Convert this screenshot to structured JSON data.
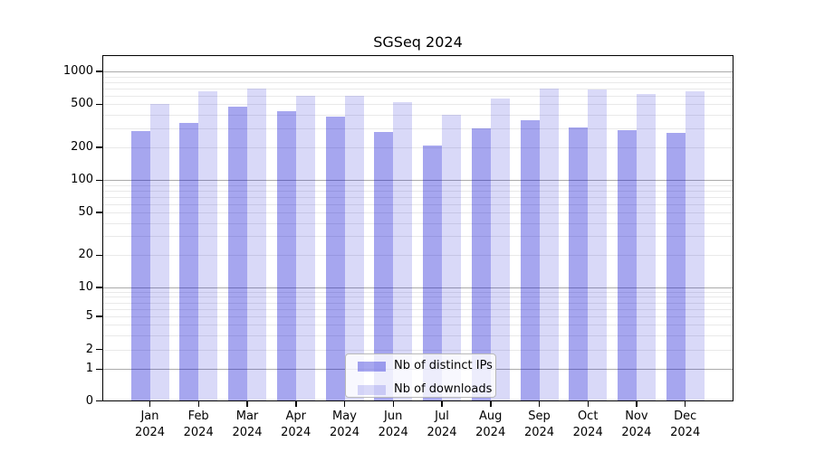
{
  "title": "SGSeq 2024",
  "chart_data": {
    "type": "bar",
    "title": "SGSeq 2024",
    "categories": [
      "Jan 2024",
      "Feb 2024",
      "Mar 2024",
      "Apr 2024",
      "May 2024",
      "Jun 2024",
      "Jul 2024",
      "Aug 2024",
      "Sep 2024",
      "Oct 2024",
      "Nov 2024",
      "Dec 2024"
    ],
    "months": [
      "Jan",
      "Feb",
      "Mar",
      "Apr",
      "May",
      "Jun",
      "Jul",
      "Aug",
      "Sep",
      "Oct",
      "Nov",
      "Dec"
    ],
    "year_label": "2024",
    "series": [
      {
        "name": "Nb of distinct IPs",
        "color": "rgba(0,0,208,0.35)",
        "color_over_white": "#a6a6ef",
        "values": [
          282,
          337,
          476,
          432,
          385,
          278,
          207,
          297,
          353,
          304,
          287,
          271
        ]
      },
      {
        "name": "Nb of downloads",
        "color": "rgba(0,0,208,0.15)",
        "color_over_white": "#d9d9f8",
        "values": [
          500,
          655,
          690,
          598,
          598,
          524,
          396,
          566,
          695,
          678,
          616,
          658
        ]
      }
    ],
    "y_ticks": [
      0,
      1,
      2,
      5,
      10,
      20,
      50,
      100,
      200,
      500,
      1000
    ],
    "ylim": [
      0,
      1400
    ],
    "yscale": "log (compressed near zero)",
    "xlabel": "",
    "ylabel": "",
    "grid": "horizontal; major lines at powers of 10, minor lines at 2-9 multiples",
    "legend_position": "lower center"
  },
  "colors": {
    "background": "#ffffff",
    "spine": "#000000",
    "major_grid": "#ababab",
    "minor_grid": "#e9e9e9",
    "text": "#000000",
    "legend_border": "#b9b9b9",
    "legend_background": "rgba(255,255,255,0.8)"
  }
}
